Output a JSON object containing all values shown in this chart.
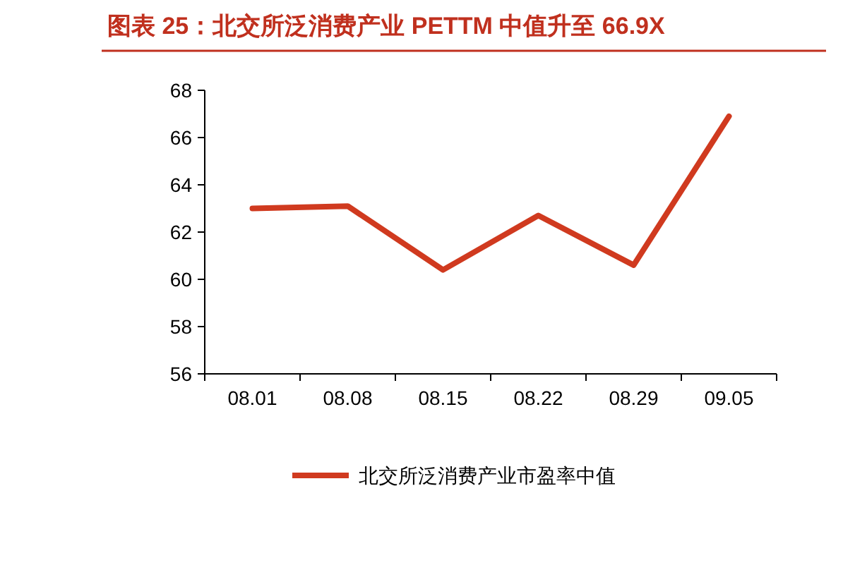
{
  "chart_data": {
    "type": "line",
    "title": "图表 25：北交所泛消费产业 PETTM 中值升至 66.9X",
    "categories": [
      "08.01",
      "08.08",
      "08.15",
      "08.22",
      "08.29",
      "09.05"
    ],
    "series": [
      {
        "name": "北交所泛消费产业市盈率中值",
        "color": "#d03a1f",
        "values": [
          63.0,
          63.1,
          60.4,
          62.7,
          60.6,
          66.9
        ]
      }
    ],
    "ylim": [
      56,
      68
    ],
    "yticks": [
      56,
      58,
      60,
      62,
      64,
      66,
      68
    ],
    "grid": false,
    "legend": "bottom",
    "marker": "none",
    "line_style": "solid"
  }
}
